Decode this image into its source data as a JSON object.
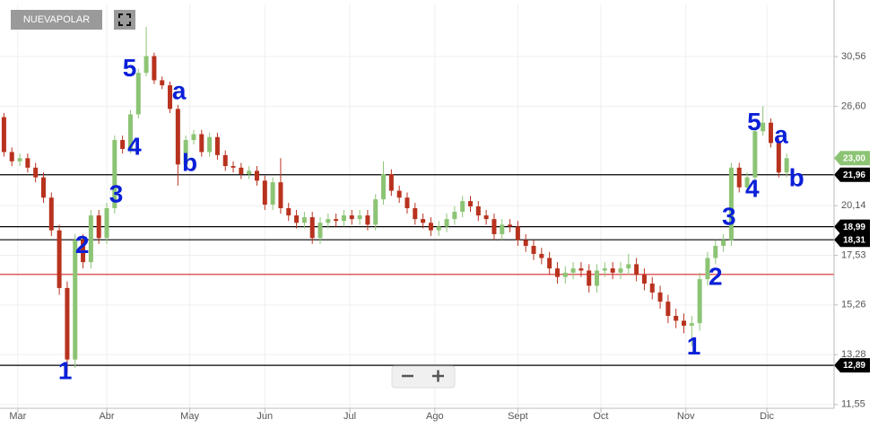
{
  "chart_data": {
    "type": "candlestick",
    "symbol": "NUEVAPOLAR",
    "log_scale": true,
    "grid": true,
    "up_color": "#8cc474",
    "down_color": "#b8321e",
    "xlim": [
      -1,
      210
    ],
    "xticks": [
      {
        "value": 3.5,
        "label": "Mar"
      },
      {
        "value": 26,
        "label": "Abr"
      },
      {
        "value": 47,
        "label": "May"
      },
      {
        "value": 66,
        "label": "Jun"
      },
      {
        "value": 87.5,
        "label": "Jul"
      },
      {
        "value": 109,
        "label": "Ago"
      },
      {
        "value": 130,
        "label": "Sept"
      },
      {
        "value": 151,
        "label": "Oct"
      },
      {
        "value": 172.5,
        "label": "Nov"
      },
      {
        "value": 193,
        "label": "Dic"
      }
    ],
    "ylim": [
      11.43,
      35.35
    ],
    "yticks": [
      {
        "value": 11.55,
        "label": "11,55"
      },
      {
        "value": 13.28,
        "label": "13,28"
      },
      {
        "value": 15.26,
        "label": "15,26"
      },
      {
        "value": 17.53,
        "label": "17,53"
      },
      {
        "value": 20.14,
        "label": "20,14"
      },
      {
        "value": 26.6,
        "label": "26,60"
      },
      {
        "value": 30.56,
        "label": "30,56"
      }
    ],
    "x": [
      0,
      2,
      4,
      6,
      8,
      10,
      12,
      14,
      16,
      18,
      20,
      22,
      24,
      26,
      28,
      30,
      32,
      34,
      36,
      38,
      40,
      42,
      44,
      46,
      48,
      50,
      52,
      54,
      56,
      58,
      60,
      62,
      64,
      66,
      68,
      70,
      72,
      74,
      76,
      78,
      80,
      82,
      84,
      86,
      88,
      90,
      92,
      94,
      96,
      98,
      100,
      102,
      104,
      106,
      108,
      110,
      112,
      114,
      116,
      118,
      120,
      122,
      124,
      126,
      128,
      130,
      132,
      134,
      136,
      138,
      140,
      142,
      144,
      146,
      148,
      150,
      152,
      154,
      156,
      158,
      160,
      162,
      164,
      166,
      168,
      170,
      172,
      174,
      176,
      178,
      180,
      182,
      184,
      186,
      188,
      190,
      192,
      194,
      196,
      198
    ],
    "open": [
      25.8,
      23.4,
      22.8,
      23.0,
      22.4,
      21.8,
      20.6,
      18.8,
      16.0,
      13.1,
      18.3,
      17.2,
      19.6,
      18.4,
      20.0,
      24.2,
      23.6,
      26.0,
      29.2,
      30.6,
      28.6,
      28.2,
      26.4,
      22.6,
      24.2,
      24.6,
      23.4,
      24.4,
      23.2,
      22.5,
      22.4,
      22.0,
      22.2,
      21.6,
      20.2,
      21.5,
      20.0,
      19.6,
      19.2,
      19.5,
      18.4,
      19.2,
      19.4,
      19.3,
      19.6,
      19.4,
      19.6,
      19.1,
      20.5,
      22.0,
      21.0,
      20.6,
      20.0,
      19.4,
      19.2,
      18.8,
      19.0,
      19.4,
      19.8,
      20.4,
      20.1,
      19.6,
      19.4,
      18.6,
      19.1,
      19.0,
      18.3,
      18.0,
      17.6,
      17.4,
      16.9,
      16.5,
      16.7,
      16.9,
      16.8,
      16.1,
      16.8,
      16.9,
      16.7,
      16.9,
      17.1,
      16.6,
      16.2,
      15.8,
      15.4,
      14.8,
      14.6,
      14.4,
      14.5,
      16.4,
      17.4,
      18.0,
      18.3,
      22.4,
      21.2,
      21.8,
      24.8,
      25.4,
      24.0,
      22.1
    ],
    "high": [
      26.1,
      23.7,
      23.3,
      23.3,
      22.7,
      22.1,
      20.9,
      19.1,
      16.3,
      18.6,
      18.6,
      19.9,
      19.9,
      20.3,
      24.5,
      24.5,
      26.3,
      29.5,
      33.2,
      30.9,
      28.9,
      28.5,
      26.7,
      24.5,
      24.9,
      24.9,
      24.7,
      24.7,
      23.5,
      22.8,
      22.7,
      22.5,
      22.5,
      21.9,
      21.8,
      23.0,
      20.3,
      19.9,
      19.8,
      19.8,
      19.5,
      19.7,
      19.7,
      19.9,
      19.9,
      19.9,
      19.9,
      20.8,
      22.8,
      22.3,
      21.3,
      20.9,
      20.3,
      19.7,
      19.5,
      19.3,
      19.7,
      20.1,
      20.7,
      20.7,
      20.4,
      19.9,
      19.7,
      19.4,
      19.4,
      19.3,
      18.6,
      18.3,
      17.9,
      17.7,
      17.2,
      17.0,
      17.2,
      17.2,
      17.1,
      17.1,
      17.2,
      17.2,
      17.2,
      17.6,
      17.4,
      16.9,
      16.5,
      16.1,
      15.7,
      15.1,
      14.9,
      14.8,
      16.7,
      17.7,
      18.3,
      18.6,
      22.7,
      22.7,
      22.1,
      25.1,
      26.6,
      25.7,
      24.3,
      23.3
    ],
    "low": [
      23.1,
      22.5,
      22.5,
      22.1,
      21.5,
      20.3,
      18.5,
      15.7,
      12.6,
      12.8,
      16.9,
      16.9,
      18.1,
      18.1,
      19.7,
      23.3,
      23.3,
      25.7,
      28.9,
      28.3,
      27.9,
      26.1,
      21.3,
      22.3,
      23.9,
      23.1,
      23.1,
      22.9,
      22.2,
      22.1,
      21.7,
      21.7,
      21.3,
      19.9,
      19.9,
      19.7,
      19.3,
      18.9,
      18.9,
      18.1,
      18.1,
      18.9,
      19.0,
      19.0,
      19.1,
      19.1,
      18.8,
      18.8,
      20.2,
      20.7,
      20.3,
      19.7,
      19.1,
      18.9,
      18.5,
      18.5,
      18.7,
      19.1,
      19.5,
      19.8,
      19.3,
      19.1,
      18.3,
      18.3,
      18.7,
      18.0,
      17.7,
      17.3,
      17.1,
      16.6,
      16.2,
      16.2,
      16.4,
      16.5,
      15.8,
      15.8,
      16.5,
      16.4,
      16.4,
      16.6,
      16.3,
      15.9,
      15.5,
      15.1,
      14.5,
      14.3,
      14.1,
      13.6,
      14.2,
      16.1,
      17.1,
      17.7,
      18.0,
      20.9,
      20.9,
      21.5,
      24.5,
      23.7,
      21.8,
      21.8
    ],
    "close": [
      23.4,
      22.8,
      23.0,
      22.4,
      21.8,
      20.6,
      18.8,
      16.0,
      13.1,
      18.3,
      17.2,
      19.6,
      18.4,
      20.0,
      24.2,
      23.6,
      26.0,
      29.2,
      30.6,
      28.6,
      28.2,
      26.4,
      22.6,
      24.2,
      24.6,
      23.4,
      24.4,
      23.2,
      22.5,
      22.4,
      22.0,
      22.2,
      21.6,
      20.2,
      21.5,
      20.0,
      19.6,
      19.2,
      19.5,
      18.4,
      19.2,
      19.4,
      19.3,
      19.6,
      19.4,
      19.6,
      19.1,
      20.5,
      22.0,
      21.0,
      20.6,
      20.0,
      19.4,
      19.2,
      18.8,
      19.0,
      19.4,
      19.8,
      20.4,
      20.1,
      19.6,
      19.4,
      18.6,
      19.1,
      19.0,
      18.3,
      18.0,
      17.6,
      17.4,
      16.9,
      16.5,
      16.7,
      16.9,
      16.8,
      16.1,
      16.8,
      16.9,
      16.7,
      16.9,
      17.1,
      16.6,
      16.2,
      15.8,
      15.4,
      14.8,
      14.6,
      14.4,
      14.5,
      16.4,
      17.4,
      18.0,
      18.3,
      22.4,
      21.2,
      21.8,
      24.8,
      25.4,
      24.0,
      22.1,
      23.0
    ],
    "levels": [
      {
        "value": 21.96,
        "label": "21,96",
        "color": "#000000"
      },
      {
        "value": 18.99,
        "label": "18,99",
        "color": "#000000"
      },
      {
        "value": 18.31,
        "label": "18,31",
        "color": "#000000"
      },
      {
        "value": 12.89,
        "label": "12,89",
        "color": "#000000"
      },
      {
        "value": 16.62,
        "color": "#d62728"
      }
    ],
    "last_price": {
      "value": 23.0,
      "label": "23,00",
      "color": "#8cc474"
    },
    "annotations": [
      {
        "label": "1",
        "x": 15.5,
        "y": 12.64
      },
      {
        "label": "2",
        "x": 19.8,
        "y": 17.97
      },
      {
        "label": "3",
        "x": 28.4,
        "y": 20.72
      },
      {
        "label": "4",
        "x": 33,
        "y": 23.66
      },
      {
        "label": "5",
        "x": 31.8,
        "y": 29.45
      },
      {
        "label": "a",
        "x": 44.3,
        "y": 27.65
      },
      {
        "label": "b",
        "x": 47,
        "y": 22.62
      },
      {
        "label": "1",
        "x": 174.5,
        "y": 13.53
      },
      {
        "label": "2",
        "x": 180,
        "y": 16.45
      },
      {
        "label": "3",
        "x": 183.4,
        "y": 19.46
      },
      {
        "label": "4",
        "x": 189.3,
        "y": 21.03
      },
      {
        "label": "5",
        "x": 189.8,
        "y": 25.33
      },
      {
        "label": "a",
        "x": 196.6,
        "y": 24.45
      },
      {
        "label": "b",
        "x": 200.5,
        "y": 21.68
      }
    ]
  }
}
